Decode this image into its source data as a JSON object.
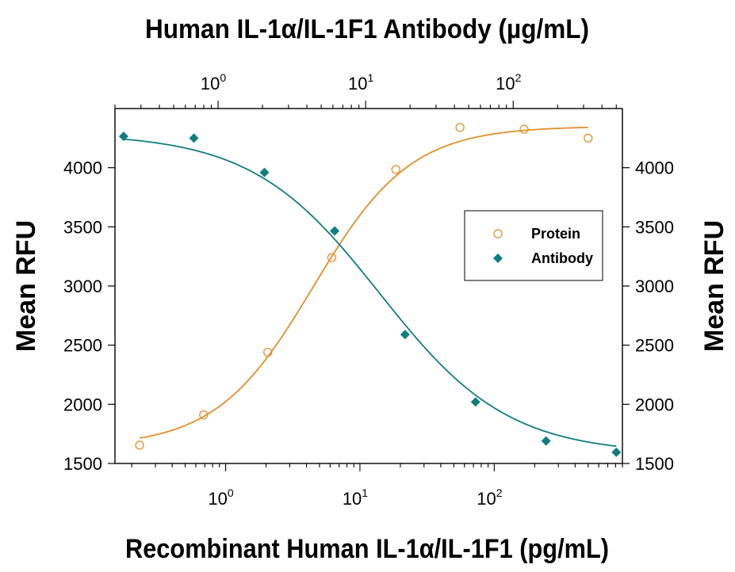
{
  "chart_data": {
    "type": "scatter",
    "top_title": "Human IL-1α/IL-1F1 Antibody  (µg/mL)",
    "xlabel": "Recombinant Human IL-1α/IL-1F1 (pg/mL)",
    "ylabel_left": "Mean RFU",
    "ylabel_right": "Mean RFU",
    "x_scale": "log",
    "x_bottom_range": [
      0.15,
      900
    ],
    "x_top_range": [
      0.2,
      550
    ],
    "ylim": [
      1500,
      4500
    ],
    "y_ticks": [
      {
        "value": 1500,
        "label": "1500"
      },
      {
        "value": 2000,
        "label": "2000"
      },
      {
        "value": 2500,
        "label": "2500"
      },
      {
        "value": 3000,
        "label": "3000"
      },
      {
        "value": 3500,
        "label": "3500"
      },
      {
        "value": 4000,
        "label": "4000"
      }
    ],
    "x_bottom_major_ticks": [
      {
        "value": 1,
        "base": "10",
        "exp": "0"
      },
      {
        "value": 10,
        "base": "10",
        "exp": "1"
      },
      {
        "value": 100,
        "base": "10",
        "exp": "2"
      }
    ],
    "x_top_major_ticks": [
      {
        "value": 1,
        "base": "10",
        "exp": "0"
      },
      {
        "value": 10,
        "base": "10",
        "exp": "1"
      },
      {
        "value": 100,
        "base": "10",
        "exp": "2"
      }
    ],
    "grid": false,
    "legend_position": "right",
    "series": [
      {
        "name": "Protein",
        "marker": "open-circle",
        "color": "#e0902a",
        "axis": "bottom",
        "x": [
          0.229,
          0.686,
          2.06,
          6.17,
          18.5,
          55.6,
          167,
          500
        ],
        "y": [
          1655,
          1910,
          2440,
          3240,
          3985,
          4340,
          4325,
          4250
        ]
      },
      {
        "name": "Antibody",
        "marker": "filled-diamond",
        "color": "#117e7e",
        "axis": "top",
        "x": [
          0.229,
          0.686,
          2.06,
          6.17,
          18.5,
          55.6,
          167,
          500
        ],
        "y": [
          4265,
          4250,
          3960,
          3465,
          2590,
          2020,
          1690,
          1595
        ]
      }
    ],
    "fits": [
      {
        "series": "Protein",
        "bottom": 1640,
        "top": 4350,
        "ec50": 4.5,
        "hill": 1.2
      },
      {
        "series": "Antibody",
        "bottom": 1580,
        "top": 4290,
        "ec50": 12.5,
        "hill": -1.0
      }
    ]
  }
}
